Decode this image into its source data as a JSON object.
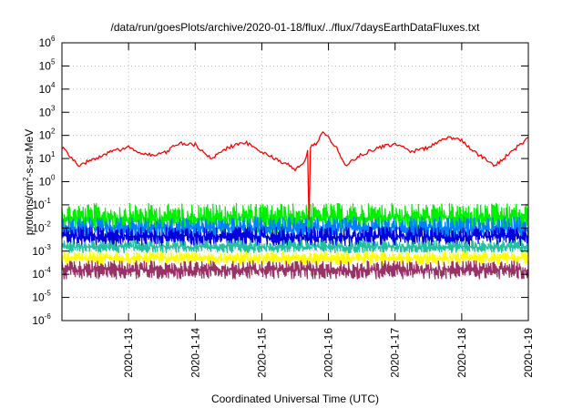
{
  "chart_data": {
    "type": "line",
    "title": "/data/run/goesPlots/archive/2020-01-18/flux/../flux/7daysEarthDataFluxes.txt",
    "xlabel": "Coordinated Universal Time (UTC)",
    "ylabel": {
      "prefix": "protons/cm",
      "sup": "2",
      "suffix": "-s-sr-MeV"
    },
    "y_scale": "log",
    "ylim": [
      1e-06,
      1000000.0
    ],
    "y_ticks": [
      {
        "base": "10",
        "exp": "-6",
        "value": 1e-06
      },
      {
        "base": "10",
        "exp": "-5",
        "value": 1e-05
      },
      {
        "base": "10",
        "exp": "-4",
        "value": 0.0001
      },
      {
        "base": "10",
        "exp": "-3",
        "value": 0.001
      },
      {
        "base": "10",
        "exp": "-2",
        "value": 0.01
      },
      {
        "base": "10",
        "exp": "-1",
        "value": 0.1
      },
      {
        "base": "10",
        "exp": "0",
        "value": 1
      },
      {
        "base": "10",
        "exp": "1",
        "value": 10
      },
      {
        "base": "10",
        "exp": "2",
        "value": 100
      },
      {
        "base": "10",
        "exp": "3",
        "value": 1000
      },
      {
        "base": "10",
        "exp": "4",
        "value": 10000
      },
      {
        "base": "10",
        "exp": "5",
        "value": 100000
      },
      {
        "base": "10",
        "exp": "6",
        "value": 1000000
      }
    ],
    "xlim": [
      "2020-01-12 00:00",
      "2020-01-19 00:00"
    ],
    "x_ticks": [
      "2020-1-13",
      "2020-1-14",
      "2020-1-15",
      "2020-1-16",
      "2020-1-17",
      "2020-1-18",
      "2020-1-19"
    ],
    "grid": true,
    "series": [
      {
        "color": "#ff0000",
        "x": [
          "2020-01-12 00:00",
          "2020-01-12 06:00",
          "2020-01-12 12:00",
          "2020-01-12 18:00",
          "2020-01-13 00:00",
          "2020-01-13 06:00",
          "2020-01-13 12:00",
          "2020-01-13 18:00",
          "2020-01-14 00:00",
          "2020-01-14 06:00",
          "2020-01-14 12:00",
          "2020-01-14 18:00",
          "2020-01-15 00:00",
          "2020-01-15 06:00",
          "2020-01-15 09:00",
          "2020-01-15 12:00",
          "2020-01-15 16:00",
          "2020-01-15 16:30",
          "2020-01-15 17:00",
          "2020-01-15 17:30",
          "2020-01-15 20:00",
          "2020-01-15 22:00",
          "2020-01-16 03:00",
          "2020-01-16 06:00",
          "2020-01-16 12:00",
          "2020-01-16 18:00",
          "2020-01-17 00:00",
          "2020-01-17 06:00",
          "2020-01-17 12:00",
          "2020-01-17 18:00",
          "2020-01-18 00:00",
          "2020-01-18 06:00",
          "2020-01-18 12:00",
          "2020-01-18 18:00",
          "2020-01-19 00:00"
        ],
        "y": [
          30,
          5,
          10,
          20,
          30,
          15,
          15,
          45,
          40,
          10,
          30,
          50,
          20,
          8,
          6,
          3,
          10,
          20,
          0.02,
          30,
          50,
          150,
          30,
          5,
          15,
          30,
          40,
          20,
          30,
          80,
          60,
          15,
          5,
          20,
          80
        ]
      },
      {
        "color": "#00ee00",
        "band": [
          0.006,
          0.12
        ]
      },
      {
        "color": "#0080ff",
        "band": [
          0.003,
          0.03
        ]
      },
      {
        "color": "#0000dd",
        "band": [
          0.0015,
          0.012
        ]
      },
      {
        "color": "#20c0a0",
        "band": [
          0.0008,
          0.003
        ]
      },
      {
        "color": "#ffff00",
        "band": [
          0.00025,
          0.001
        ]
      },
      {
        "color": "#993366",
        "band": [
          6e-05,
          0.0004
        ]
      }
    ]
  }
}
